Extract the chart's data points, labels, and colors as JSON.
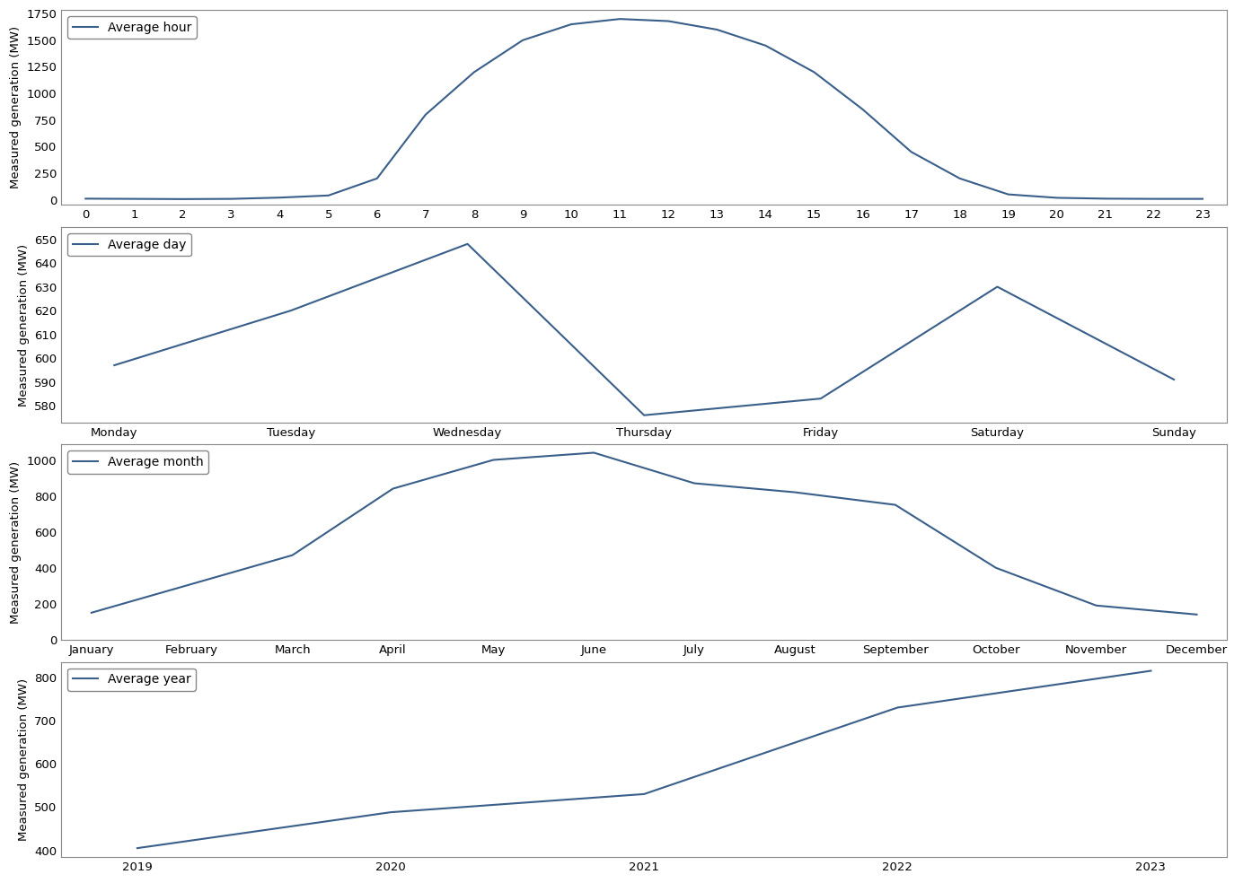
{
  "hour": {
    "x": [
      0,
      1,
      2,
      3,
      4,
      5,
      6,
      7,
      8,
      9,
      10,
      11,
      12,
      13,
      14,
      15,
      16,
      17,
      18,
      19,
      20,
      21,
      22,
      23
    ],
    "y": [
      10,
      8,
      6,
      8,
      20,
      40,
      200,
      800,
      1200,
      1500,
      1650,
      1700,
      1680,
      1600,
      1450,
      1200,
      850,
      450,
      200,
      50,
      18,
      10,
      8,
      8
    ],
    "legend": "Average hour",
    "ylabel": "Measured generation (MW)",
    "xticks": [
      0,
      1,
      2,
      3,
      4,
      5,
      6,
      7,
      8,
      9,
      10,
      11,
      12,
      13,
      14,
      15,
      16,
      17,
      18,
      19,
      20,
      21,
      22,
      23
    ]
  },
  "day": {
    "x": [
      0,
      1,
      2,
      3,
      4,
      5,
      6
    ],
    "y": [
      597,
      620,
      648,
      576,
      583,
      630,
      591
    ],
    "legend": "Average day",
    "ylabel": "Measured generation (MW)",
    "xtick_labels": [
      "Monday",
      "Tuesday",
      "Wednesday",
      "Thursday",
      "Friday",
      "Saturday",
      "Sunday"
    ],
    "ylim": [
      573,
      655
    ]
  },
  "month": {
    "x": [
      0,
      1,
      2,
      3,
      4,
      5,
      6,
      7,
      8,
      9,
      10,
      11
    ],
    "y": [
      150,
      310,
      470,
      840,
      1000,
      1040,
      870,
      820,
      750,
      400,
      190,
      140
    ],
    "legend": "Average month",
    "ylabel": "Measured generation (MW)",
    "xtick_labels": [
      "January",
      "February",
      "March",
      "April",
      "May",
      "June",
      "July",
      "August",
      "September",
      "October",
      "November",
      "December"
    ]
  },
  "year": {
    "x": [
      2019,
      2020,
      2021,
      2022,
      2023
    ],
    "y": [
      405,
      488,
      530,
      730,
      815
    ],
    "legend": "Average year",
    "ylabel": "Measured generation (MW)",
    "xticks": [
      2019,
      2020,
      2021,
      2022,
      2023
    ]
  },
  "line_color": "#3a5f8a",
  "line_width": 1.5,
  "bg_color": "#ffffff",
  "legend_fontsize": 10,
  "tick_fontsize": 9.5,
  "ylabel_fontsize": 9.5,
  "spine_color": "#888888"
}
